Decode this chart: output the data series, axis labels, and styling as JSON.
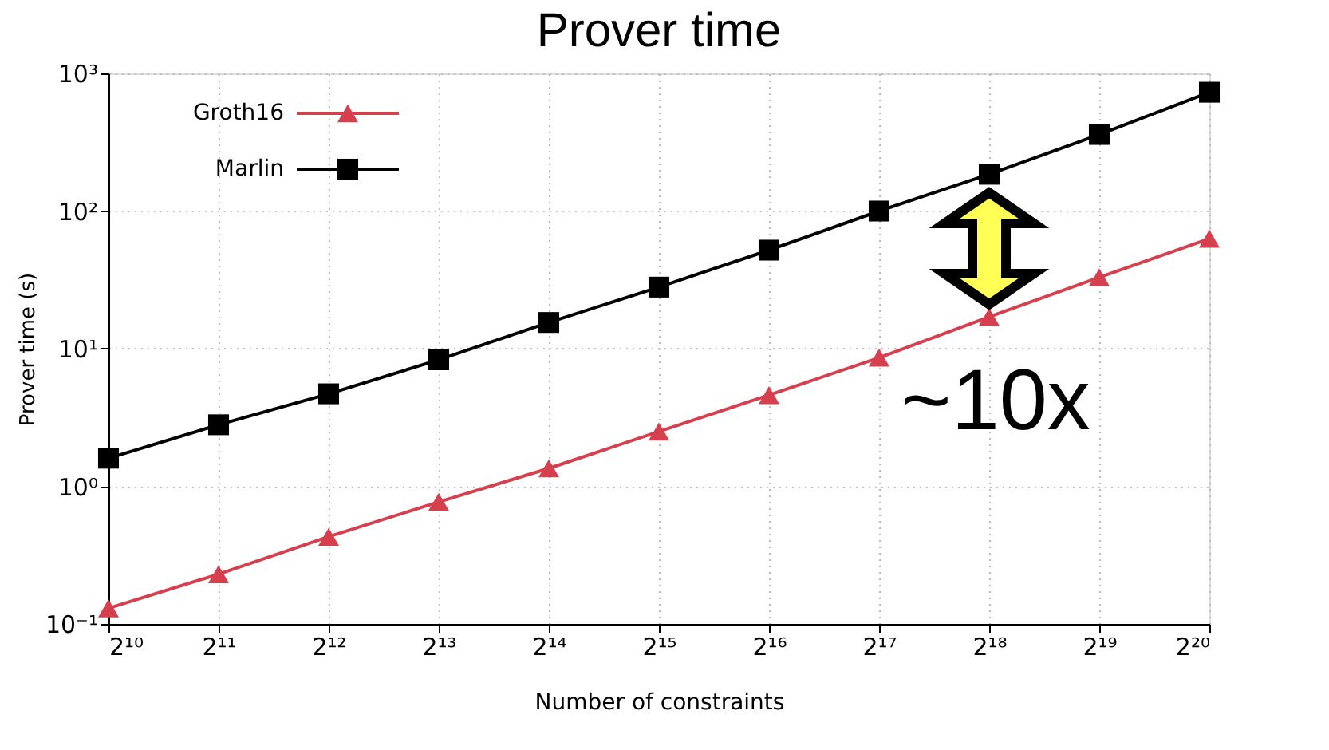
{
  "chart_data": {
    "type": "line",
    "title": "Prover time",
    "xlabel": "Number of constraints",
    "ylabel": "Prover time (s)",
    "x": [
      1024,
      2048,
      4096,
      8192,
      16384,
      32768,
      65536,
      131072,
      262144,
      524288,
      1048576
    ],
    "series": [
      {
        "name": "Groth16",
        "color": "#d6404e",
        "marker": "triangle",
        "values": [
          0.13,
          0.23,
          0.43,
          0.77,
          1.35,
          2.5,
          4.6,
          8.6,
          17,
          33,
          63
        ]
      },
      {
        "name": "Marlin",
        "color": "#000000",
        "marker": "square",
        "values": [
          1.6,
          2.8,
          4.7,
          8.3,
          15.5,
          28,
          52,
          100,
          185,
          360,
          730
        ]
      }
    ],
    "log": "xy",
    "xlim": [
      1024,
      1048576
    ],
    "xticks": [
      {
        "value": 1024,
        "label": "2¹⁰"
      },
      {
        "value": 2048,
        "label": "2¹¹"
      },
      {
        "value": 4096,
        "label": "2¹²"
      },
      {
        "value": 8192,
        "label": "2¹³"
      },
      {
        "value": 16384,
        "label": "2¹⁴"
      },
      {
        "value": 32768,
        "label": "2¹⁵"
      },
      {
        "value": 65536,
        "label": "2¹⁶"
      },
      {
        "value": 131072,
        "label": "2¹⁷"
      },
      {
        "value": 262144,
        "label": "2¹⁸"
      },
      {
        "value": 524288,
        "label": "2¹⁹"
      },
      {
        "value": 1048576,
        "label": "2²⁰"
      }
    ],
    "ylim": [
      0.1,
      1000
    ],
    "yticks": [
      {
        "value": 0.1,
        "label": "10⁻¹"
      },
      {
        "value": 1,
        "label": "10⁰"
      },
      {
        "value": 10,
        "label": "10¹"
      },
      {
        "value": 100,
        "label": "10²"
      },
      {
        "value": 1000,
        "label": "10³"
      }
    ],
    "grid": true,
    "legend": "top left",
    "line_style": "solid",
    "annotations": [
      "~10x"
    ]
  }
}
